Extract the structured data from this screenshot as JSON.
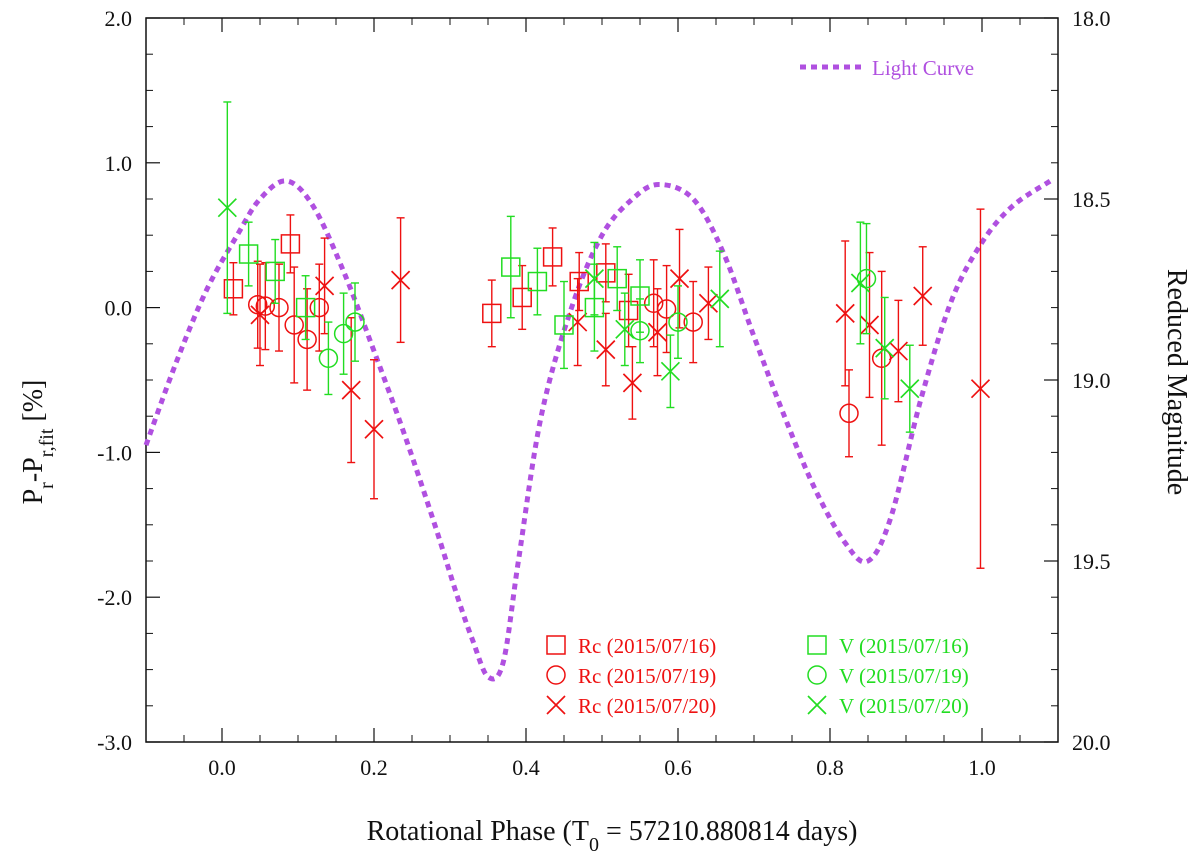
{
  "chart_data": {
    "type": "scatter",
    "xlabel_main": "Rotational Phase (T",
    "xlabel_sub": "0",
    "xlabel_rest": " = 57210.880814 days)",
    "ylabel_main": "P",
    "ylabel_sub1": "r",
    "ylabel_mid": "-P",
    "ylabel_sub2": "r,fit",
    "ylabel_rest": " [%]",
    "y2label": "Reduced Magnitude",
    "xlim": [
      -0.1,
      1.1
    ],
    "ylim": [
      -3.0,
      2.0
    ],
    "y2lim": [
      18.0,
      20.0
    ],
    "xticks": [
      "0.0",
      "0.2",
      "0.4",
      "0.6",
      "0.8",
      "1.0"
    ],
    "yticks": [
      "-3.0",
      "-2.0",
      "-1.0",
      "0.0",
      "1.0",
      "2.0"
    ],
    "y2ticks": [
      "18.0",
      "18.5",
      "19.0",
      "19.5",
      "20.0"
    ],
    "colors": {
      "red": "#ee1111",
      "green": "#22dd22",
      "purple": "#b050e0",
      "axis": "#111111"
    },
    "light_curve": {
      "name": "Light Curve",
      "x": [
        -0.1,
        -0.06,
        -0.02,
        0.02,
        0.05,
        0.085,
        0.12,
        0.16,
        0.2,
        0.24,
        0.28,
        0.31,
        0.33,
        0.35,
        0.37,
        0.39,
        0.42,
        0.46,
        0.5,
        0.54,
        0.575,
        0.62,
        0.66,
        0.7,
        0.74,
        0.78,
        0.82,
        0.85,
        0.88,
        0.92,
        0.96,
        1.0,
        1.04,
        1.09
      ],
      "y": [
        19.18,
        18.95,
        18.75,
        18.6,
        18.5,
        18.45,
        18.52,
        18.7,
        18.92,
        19.15,
        19.4,
        19.6,
        19.72,
        19.82,
        19.78,
        19.5,
        19.1,
        18.8,
        18.6,
        18.5,
        18.46,
        18.5,
        18.65,
        18.88,
        19.1,
        19.3,
        19.45,
        19.5,
        19.38,
        19.05,
        18.78,
        18.62,
        18.52,
        18.45
      ]
    },
    "series": [
      {
        "name": "Rc (2015/07/16)",
        "marker": "square",
        "color": "#ee1111",
        "points": [
          [
            0.015,
            0.13,
            0.18
          ],
          [
            0.09,
            0.44,
            0.2
          ],
          [
            0.355,
            -0.04,
            0.23
          ],
          [
            0.395,
            0.07,
            0.22
          ],
          [
            0.435,
            0.35,
            0.2
          ],
          [
            0.47,
            0.18,
            0.2
          ],
          [
            0.505,
            0.24,
            0.2
          ],
          [
            0.535,
            -0.02,
            0.25
          ]
        ]
      },
      {
        "name": "Rc (2015/07/19)",
        "marker": "circle",
        "color": "#ee1111",
        "points": [
          [
            0.047,
            0.02,
            0.3
          ],
          [
            0.057,
            0.01,
            0.3
          ],
          [
            0.075,
            0.0,
            0.3
          ],
          [
            0.095,
            -0.12,
            0.4
          ],
          [
            0.112,
            -0.22,
            0.35
          ],
          [
            0.128,
            0.0,
            0.3
          ],
          [
            0.568,
            0.03,
            0.3
          ],
          [
            0.585,
            -0.01,
            0.3
          ],
          [
            0.62,
            -0.1,
            0.28
          ],
          [
            0.825,
            -0.73,
            0.3
          ],
          [
            0.868,
            -0.35,
            0.6
          ]
        ]
      },
      {
        "name": "Rc (2015/07/20)",
        "marker": "x",
        "color": "#ee1111",
        "points": [
          [
            0.05,
            -0.05,
            0.35
          ],
          [
            0.135,
            0.15,
            0.33
          ],
          [
            0.17,
            -0.57,
            0.5
          ],
          [
            0.2,
            -0.84,
            0.48
          ],
          [
            0.235,
            0.19,
            0.43
          ],
          [
            0.468,
            -0.1,
            0.3
          ],
          [
            0.505,
            -0.29,
            0.25
          ],
          [
            0.54,
            -0.52,
            0.25
          ],
          [
            0.573,
            -0.17,
            0.3
          ],
          [
            0.602,
            0.2,
            0.34
          ],
          [
            0.64,
            0.03,
            0.25
          ],
          [
            0.82,
            -0.04,
            0.5
          ],
          [
            0.852,
            -0.12,
            0.5
          ],
          [
            0.89,
            -0.3,
            0.35
          ],
          [
            0.922,
            0.08,
            0.34
          ],
          [
            0.998,
            -0.56,
            1.24
          ]
        ]
      },
      {
        "name": "V (2015/07/16)",
        "marker": "square",
        "color": "#22dd22",
        "points": [
          [
            0.035,
            0.37,
            0.22
          ],
          [
            0.07,
            0.25,
            0.22
          ],
          [
            0.11,
            0.0,
            0.22
          ],
          [
            0.38,
            0.28,
            0.35
          ],
          [
            0.415,
            0.18,
            0.23
          ],
          [
            0.45,
            -0.12,
            0.3
          ],
          [
            0.49,
            0.0,
            0.3
          ],
          [
            0.52,
            0.2,
            0.22
          ],
          [
            0.55,
            0.08,
            0.25
          ]
        ]
      },
      {
        "name": "V (2015/07/19)",
        "marker": "circle",
        "color": "#22dd22",
        "points": [
          [
            0.14,
            -0.35,
            0.25
          ],
          [
            0.16,
            -0.18,
            0.28
          ],
          [
            0.175,
            -0.1,
            0.27
          ],
          [
            0.55,
            -0.16,
            0.22
          ],
          [
            0.6,
            -0.1,
            0.25
          ],
          [
            0.848,
            0.2,
            0.38
          ]
        ]
      },
      {
        "name": "V (2015/07/20)",
        "marker": "x",
        "color": "#22dd22",
        "points": [
          [
            0.007,
            0.69,
            0.73
          ],
          [
            0.49,
            0.2,
            0.25
          ],
          [
            0.53,
            -0.15,
            0.25
          ],
          [
            0.59,
            -0.44,
            0.25
          ],
          [
            0.655,
            0.06,
            0.33
          ],
          [
            0.84,
            0.17,
            0.42
          ],
          [
            0.872,
            -0.28,
            0.35
          ],
          [
            0.905,
            -0.56,
            0.3
          ]
        ]
      }
    ]
  }
}
